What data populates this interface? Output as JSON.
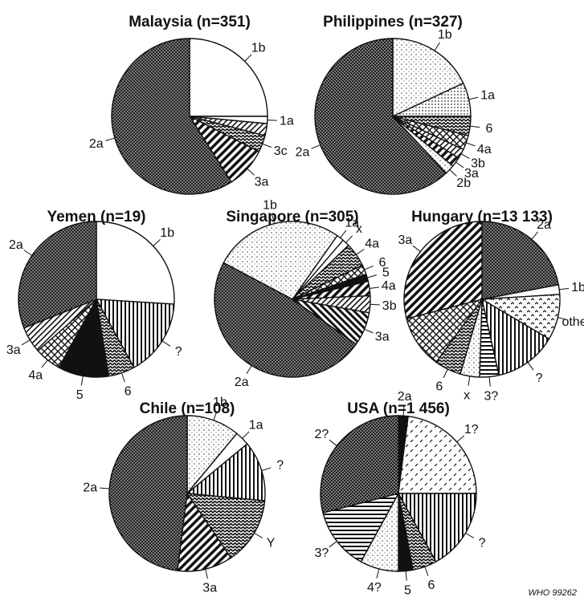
{
  "figure": {
    "credit": "WHO 99262"
  },
  "chart_data": [
    {
      "type": "pie",
      "title": "Malaysia (n=351)",
      "slices": [
        {
          "label": "1b",
          "value": 25.0,
          "pattern": "white"
        },
        {
          "label": "1a",
          "value": 1.5,
          "pattern": "white"
        },
        {
          "label": "",
          "value": 2.5,
          "pattern": "hatch"
        },
        {
          "label": "3c",
          "value": 3.5,
          "pattern": "zigzag"
        },
        {
          "label": "3a",
          "value": 8.5,
          "pattern": "diag"
        },
        {
          "label": "2a",
          "value": 59.0,
          "pattern": "dark"
        }
      ]
    },
    {
      "type": "pie",
      "title": "Philippines (n=327)",
      "slices": [
        {
          "label": "1b",
          "value": 18.0,
          "pattern": "dots"
        },
        {
          "label": "1a",
          "value": 7.0,
          "pattern": "dots2"
        },
        {
          "label": "6",
          "value": 4.0,
          "pattern": "zigzag"
        },
        {
          "label": "4a",
          "value": 3.0,
          "pattern": "cross"
        },
        {
          "label": "3b",
          "value": 2.0,
          "pattern": "hatch"
        },
        {
          "label": "3a",
          "value": 2.0,
          "pattern": "diag"
        },
        {
          "label": "2b",
          "value": 2.0,
          "pattern": "dots"
        },
        {
          "label": "2a",
          "value": 62.0,
          "pattern": "dark"
        }
      ]
    },
    {
      "type": "pie",
      "title": "Yemen (n=19)",
      "slices": [
        {
          "label": "1b",
          "value": 26.0,
          "pattern": "white"
        },
        {
          "label": "?",
          "value": 16.0,
          "pattern": "vert"
        },
        {
          "label": "6",
          "value": 5.5,
          "pattern": "zigzag"
        },
        {
          "label": "5",
          "value": 10.5,
          "pattern": "black"
        },
        {
          "label": "4a",
          "value": 5.5,
          "pattern": "cross"
        },
        {
          "label": "3a",
          "value": 5.5,
          "pattern": "hatch"
        },
        {
          "label": "2a",
          "value": 31.0,
          "pattern": "dark"
        }
      ]
    },
    {
      "type": "pie",
      "title": "Singapore (n=305)",
      "slices": [
        {
          "label": "1b",
          "value": 27.0,
          "pattern": "dots"
        },
        {
          "label": "1a",
          "value": 1.5,
          "pattern": "white"
        },
        {
          "label": "x",
          "value": 1.5,
          "pattern": "white"
        },
        {
          "label": "4a",
          "value": 5.0,
          "pattern": "zigzag"
        },
        {
          "label": "6",
          "value": 2.0,
          "pattern": "cross"
        },
        {
          "label": "5",
          "value": 1.5,
          "pattern": "black"
        },
        {
          "label": "4a",
          "value": 3.0,
          "pattern": "diag"
        },
        {
          "label": "3b",
          "value": 3.5,
          "pattern": "hatch"
        },
        {
          "label": "3a",
          "value": 7.0,
          "pattern": "diag2"
        },
        {
          "label": "2a",
          "value": 48.0,
          "pattern": "dark"
        }
      ]
    },
    {
      "type": "pie",
      "title": "Hungary (n=13 133)",
      "slices": [
        {
          "label": "2a",
          "value": 22.0,
          "pattern": "dark"
        },
        {
          "label": "1b",
          "value": 2.0,
          "pattern": "white"
        },
        {
          "label": "other",
          "value": 9.5,
          "pattern": "carets"
        },
        {
          "label": "?",
          "value": 13.0,
          "pattern": "vert"
        },
        {
          "label": "3?",
          "value": 4.0,
          "pattern": "horiz"
        },
        {
          "label": "x",
          "value": 4.0,
          "pattern": "dots"
        },
        {
          "label": "6",
          "value": 5.5,
          "pattern": "zigzag"
        },
        {
          "label": "",
          "value": 11.0,
          "pattern": "cross"
        },
        {
          "label": "3a",
          "value": 29.0,
          "pattern": "diag"
        }
      ]
    },
    {
      "type": "pie",
      "title": "Chile (n=108)",
      "slices": [
        {
          "label": "1b",
          "value": 11.0,
          "pattern": "dots"
        },
        {
          "label": "1a",
          "value": 3.0,
          "pattern": "white"
        },
        {
          "label": "?",
          "value": 12.5,
          "pattern": "vert"
        },
        {
          "label": "Y",
          "value": 14.0,
          "pattern": "zigzag"
        },
        {
          "label": "3a",
          "value": 11.5,
          "pattern": "diag"
        },
        {
          "label": "2a",
          "value": 48.0,
          "pattern": "dark"
        }
      ]
    },
    {
      "type": "pie",
      "title": "USA (n=1 456)",
      "slices": [
        {
          "label": "2a",
          "value": 2.0,
          "pattern": "black"
        },
        {
          "label": "1?",
          "value": 23.0,
          "pattern": "dashes"
        },
        {
          "label": "?",
          "value": 17.0,
          "pattern": "vert"
        },
        {
          "label": "6",
          "value": 5.0,
          "pattern": "zigzag"
        },
        {
          "label": "5",
          "value": 3.0,
          "pattern": "black"
        },
        {
          "label": "4?",
          "value": 8.0,
          "pattern": "dots"
        },
        {
          "label": "3?",
          "value": 13.0,
          "pattern": "horiz"
        },
        {
          "label": "2?",
          "value": 29.0,
          "pattern": "dark"
        }
      ]
    }
  ]
}
